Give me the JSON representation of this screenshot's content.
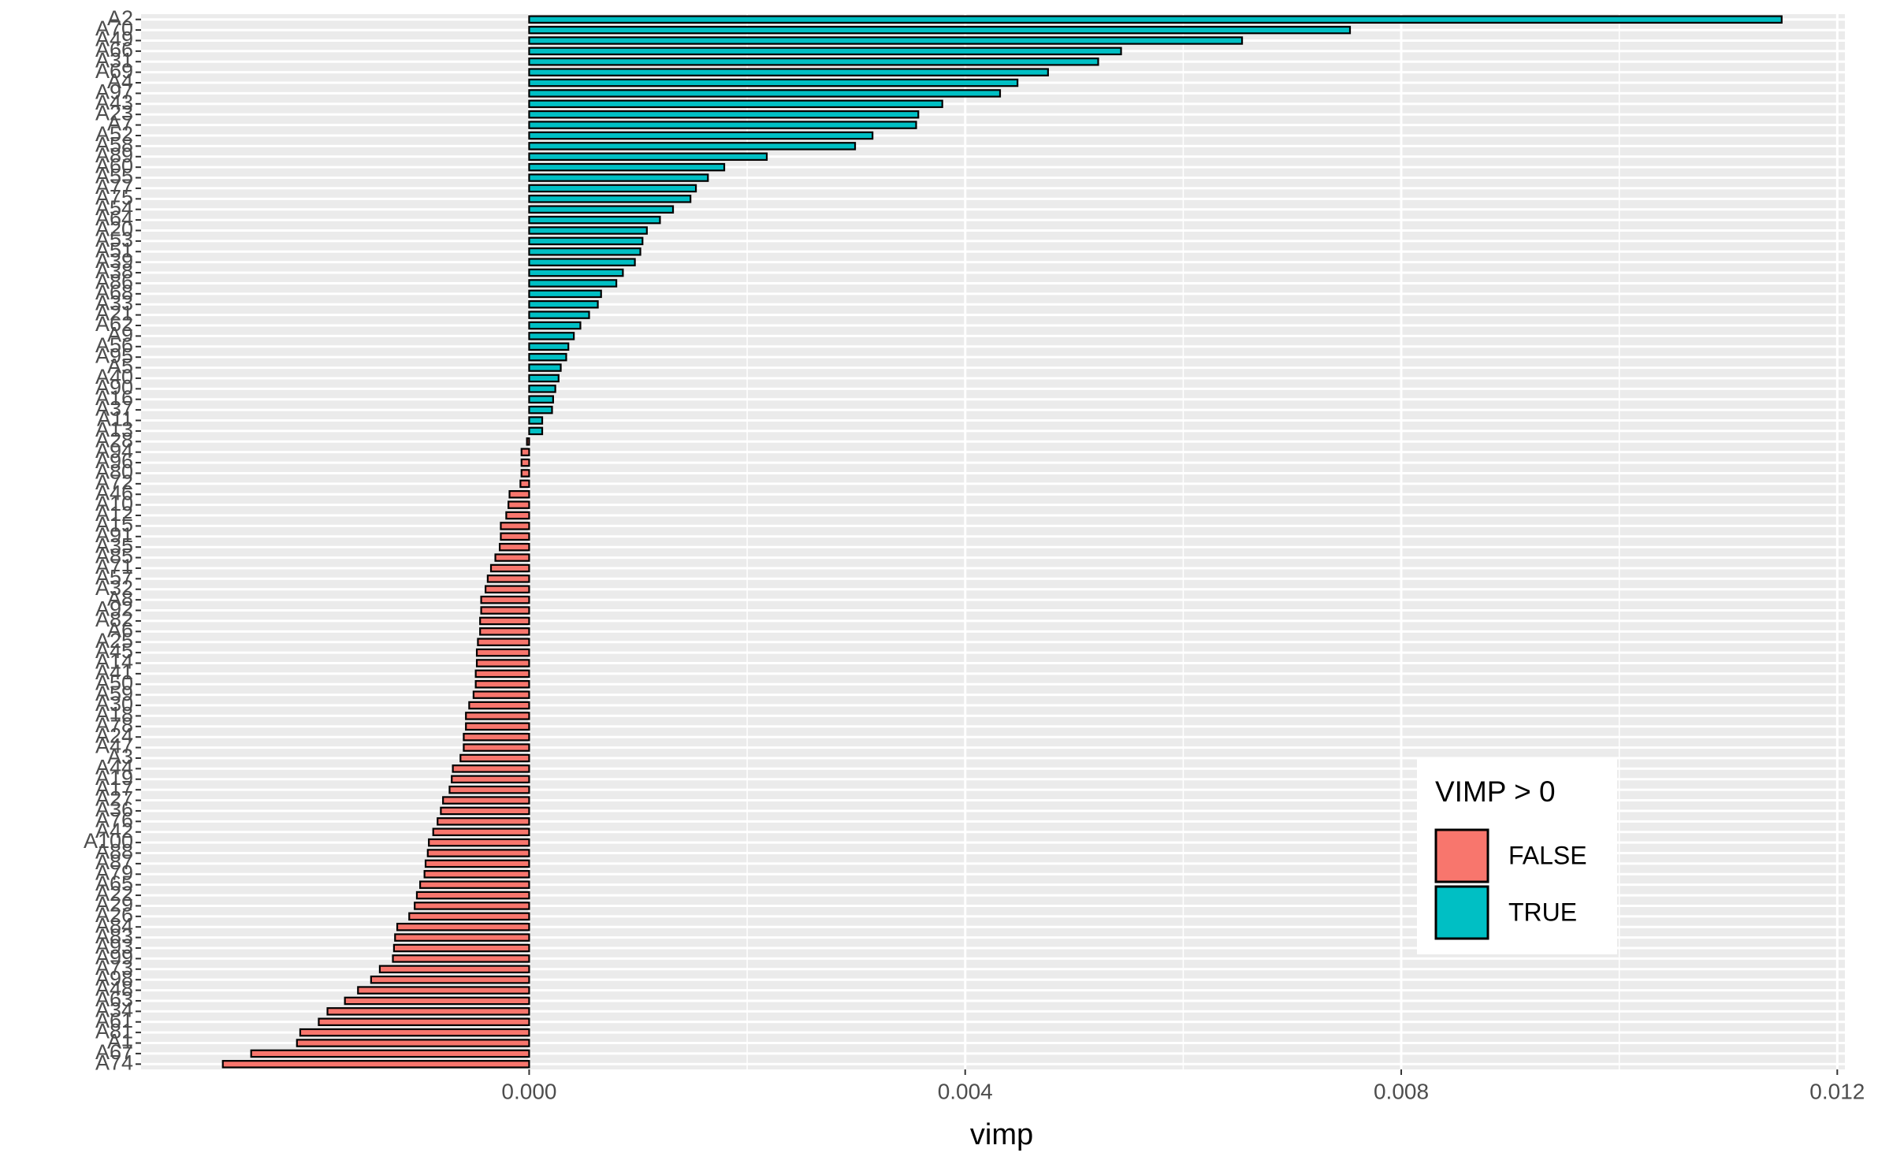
{
  "chart_data": {
    "type": "barh",
    "x_label": "vimp",
    "legend_title": "VIMP > 0",
    "legend_position": "inside-bottom-right",
    "grid": true,
    "categories": [
      "A2",
      "A70",
      "A49",
      "A66",
      "A31",
      "A69",
      "A4",
      "A97",
      "A43",
      "A23",
      "A7",
      "A52",
      "A58",
      "A89",
      "A60",
      "A55",
      "A77",
      "A75",
      "A54",
      "A64",
      "A20",
      "A53",
      "A51",
      "A39",
      "A38",
      "A86",
      "A68",
      "A33",
      "A21",
      "A62",
      "A9",
      "A56",
      "A95",
      "A5",
      "A40",
      "A90",
      "A16",
      "A37",
      "A11",
      "A13",
      "A28",
      "A94",
      "A96",
      "A80",
      "A72",
      "A46",
      "A10",
      "A12",
      "A15",
      "A91",
      "A35",
      "A85",
      "A71",
      "A57",
      "A32",
      "A8",
      "A92",
      "A82",
      "A6",
      "A25",
      "A45",
      "A14",
      "A41",
      "A50",
      "A59",
      "A30",
      "A18",
      "A78",
      "A24",
      "A47",
      "A3",
      "A44",
      "A19",
      "A17",
      "A27",
      "A36",
      "A76",
      "A42",
      "A100",
      "A88",
      "A87",
      "A79",
      "A65",
      "A22",
      "A29",
      "A26",
      "A84",
      "A83",
      "A93",
      "A99",
      "A73",
      "A98",
      "A48",
      "A63",
      "A34",
      "A61",
      "A81",
      "A1",
      "A67",
      "A74"
    ],
    "series": [
      {
        "name": "FALSE",
        "color": "#f8766d",
        "values": [
          null,
          null,
          null,
          null,
          null,
          null,
          null,
          null,
          null,
          null,
          null,
          null,
          null,
          null,
          null,
          null,
          null,
          null,
          null,
          null,
          null,
          null,
          null,
          null,
          null,
          null,
          null,
          null,
          null,
          null,
          null,
          null,
          null,
          null,
          null,
          null,
          null,
          null,
          null,
          null,
          -2e-05,
          -7e-05,
          -7e-05,
          -7e-05,
          -8e-05,
          -0.00018,
          -0.00019,
          -0.00021,
          -0.00026,
          -0.00026,
          -0.00027,
          -0.00031,
          -0.00035,
          -0.00038,
          -0.0004,
          -0.00044,
          -0.00044,
          -0.00045,
          -0.00045,
          -0.00047,
          -0.00048,
          -0.00048,
          -0.00049,
          -0.00049,
          -0.00051,
          -0.00055,
          -0.00058,
          -0.00058,
          -0.0006,
          -0.0006,
          -0.00063,
          -0.0007,
          -0.00071,
          -0.00073,
          -0.00079,
          -0.00081,
          -0.00084,
          -0.00088,
          -0.00092,
          -0.00093,
          -0.00095,
          -0.00096,
          -0.001,
          -0.00103,
          -0.00105,
          -0.0011,
          -0.00121,
          -0.00123,
          -0.00124,
          -0.00125,
          -0.00137,
          -0.00145,
          -0.00157,
          -0.00169,
          -0.00185,
          -0.00193,
          -0.0021,
          -0.00213,
          -0.00255,
          -0.00281
        ]
      },
      {
        "name": "TRUE",
        "color": "#00bfc4",
        "values": [
          0.01149,
          0.00753,
          0.00654,
          0.00543,
          0.00522,
          0.00476,
          0.00448,
          0.00432,
          0.00379,
          0.00357,
          0.00355,
          0.00315,
          0.00299,
          0.00218,
          0.00179,
          0.00164,
          0.00153,
          0.00148,
          0.00132,
          0.0012,
          0.00108,
          0.00104,
          0.00102,
          0.00097,
          0.00086,
          0.0008,
          0.00066,
          0.00063,
          0.00055,
          0.00047,
          0.00041,
          0.00036,
          0.00034,
          0.00029,
          0.00027,
          0.00024,
          0.00022,
          0.00021,
          0.00012,
          0.00012,
          null,
          null,
          null,
          null,
          null,
          null,
          null,
          null,
          null,
          null,
          null,
          null,
          null,
          null,
          null,
          null,
          null,
          null,
          null,
          null,
          null,
          null,
          null,
          null,
          null,
          null,
          null,
          null,
          null,
          null,
          null,
          null,
          null,
          null,
          null,
          null,
          null,
          null,
          null,
          null,
          null,
          null,
          null,
          null,
          null,
          null,
          null,
          null,
          null,
          null,
          null,
          null,
          null,
          null,
          null,
          null,
          null,
          null,
          null,
          null
        ]
      }
    ],
    "xlim": [
      -0.00356,
      0.01207
    ],
    "xticks": [
      {
        "value": 0,
        "label": "0.000"
      },
      {
        "value": 0.004,
        "label": "0.004"
      },
      {
        "value": 0.008,
        "label": "0.008"
      },
      {
        "value": 0.012,
        "label": "0.012"
      }
    ]
  }
}
